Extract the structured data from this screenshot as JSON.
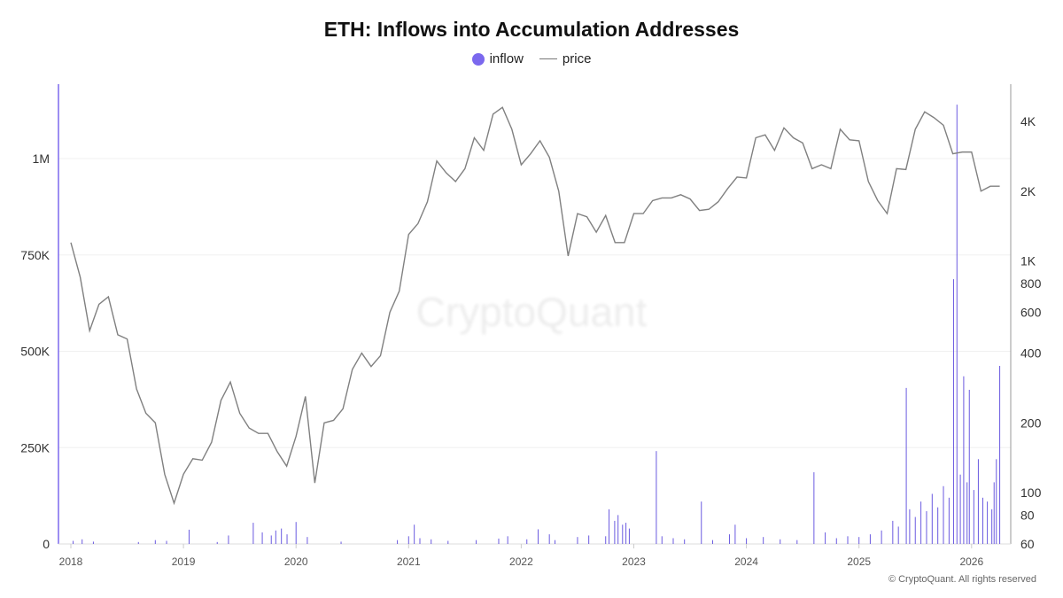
{
  "chart_data": {
    "type": "bar+line",
    "title": "ETH: Inflows into Accumulation Addresses",
    "legend": [
      {
        "name": "inflow",
        "color": "#7b68ee",
        "marker": "dot"
      },
      {
        "name": "price",
        "color": "#808080",
        "marker": "line"
      }
    ],
    "legend_placement": "top-center",
    "x_ticks": [
      "2018",
      "2019",
      "2020",
      "2021",
      "2022",
      "2023",
      "2024",
      "2025",
      "2026"
    ],
    "xlim": [
      2017.95,
      2026.3
    ],
    "y_left": {
      "ticks": [
        0,
        250000,
        500000,
        750000,
        1000000
      ],
      "tick_labels": [
        "0",
        "250K",
        "500K",
        "750K",
        "1M"
      ],
      "ylim": [
        0,
        1200000
      ],
      "scale": "linear"
    },
    "y_right": {
      "ticks": [
        60,
        80,
        100,
        200,
        400,
        600,
        800,
        1000,
        2000,
        4000
      ],
      "tick_labels": [
        "60",
        "80",
        "100",
        "200",
        "400",
        "600",
        "800",
        "1K",
        "2K",
        "4K"
      ],
      "ylim": [
        60,
        5200
      ],
      "scale": "log"
    },
    "grid": true,
    "series": [
      {
        "name": "inflow",
        "type": "bar",
        "axis": "left",
        "color": "#6a5ae0",
        "points": [
          [
            2018.02,
            8000
          ],
          [
            2018.1,
            12000
          ],
          [
            2018.2,
            6000
          ],
          [
            2018.6,
            5000
          ],
          [
            2018.75,
            10000
          ],
          [
            2018.85,
            8000
          ],
          [
            2019.05,
            37000
          ],
          [
            2019.3,
            5000
          ],
          [
            2019.4,
            22000
          ],
          [
            2019.62,
            55000
          ],
          [
            2019.7,
            30000
          ],
          [
            2019.78,
            22000
          ],
          [
            2019.82,
            35000
          ],
          [
            2019.87,
            40000
          ],
          [
            2019.92,
            25000
          ],
          [
            2020.0,
            57000
          ],
          [
            2020.1,
            18000
          ],
          [
            2020.4,
            6000
          ],
          [
            2020.9,
            10000
          ],
          [
            2021.0,
            20000
          ],
          [
            2021.05,
            50000
          ],
          [
            2021.1,
            15000
          ],
          [
            2021.2,
            12000
          ],
          [
            2021.35,
            8000
          ],
          [
            2021.6,
            10000
          ],
          [
            2021.8,
            14000
          ],
          [
            2021.88,
            20000
          ],
          [
            2022.05,
            12000
          ],
          [
            2022.15,
            38000
          ],
          [
            2022.25,
            25000
          ],
          [
            2022.3,
            10000
          ],
          [
            2022.5,
            18000
          ],
          [
            2022.6,
            22000
          ],
          [
            2022.75,
            20000
          ],
          [
            2022.78,
            90000
          ],
          [
            2022.83,
            60000
          ],
          [
            2022.86,
            75000
          ],
          [
            2022.9,
            50000
          ],
          [
            2022.93,
            55000
          ],
          [
            2022.96,
            40000
          ],
          [
            2023.2,
            241000
          ],
          [
            2023.25,
            20000
          ],
          [
            2023.35,
            15000
          ],
          [
            2023.45,
            12000
          ],
          [
            2023.6,
            110000
          ],
          [
            2023.7,
            10000
          ],
          [
            2023.85,
            25000
          ],
          [
            2023.9,
            50000
          ],
          [
            2024.0,
            15000
          ],
          [
            2024.15,
            18000
          ],
          [
            2024.3,
            12000
          ],
          [
            2024.45,
            10000
          ],
          [
            2024.6,
            186000
          ],
          [
            2024.7,
            30000
          ],
          [
            2024.8,
            15000
          ],
          [
            2024.9,
            20000
          ],
          [
            2025.0,
            18000
          ],
          [
            2025.1,
            25000
          ],
          [
            2025.2,
            35000
          ],
          [
            2025.3,
            60000
          ],
          [
            2025.35,
            45000
          ],
          [
            2025.42,
            405000
          ],
          [
            2025.45,
            90000
          ],
          [
            2025.5,
            70000
          ],
          [
            2025.55,
            110000
          ],
          [
            2025.6,
            85000
          ],
          [
            2025.65,
            130000
          ],
          [
            2025.7,
            95000
          ],
          [
            2025.75,
            150000
          ],
          [
            2025.8,
            120000
          ],
          [
            2025.84,
            687000
          ],
          [
            2025.87,
            1140000
          ],
          [
            2025.9,
            180000
          ],
          [
            2025.93,
            435000
          ],
          [
            2025.96,
            160000
          ],
          [
            2025.98,
            400000
          ],
          [
            2026.02,
            140000
          ],
          [
            2026.06,
            220000
          ],
          [
            2026.1,
            120000
          ],
          [
            2026.14,
            110000
          ],
          [
            2026.18,
            90000
          ],
          [
            2026.2,
            160000
          ],
          [
            2026.22,
            220000
          ],
          [
            2026.25,
            462000
          ]
        ]
      },
      {
        "name": "price",
        "type": "line",
        "axis": "right",
        "color": "#808080",
        "x_start": 2018.0,
        "x_step_months": 1,
        "values": [
          1200,
          850,
          500,
          650,
          700,
          480,
          460,
          280,
          220,
          200,
          120,
          90,
          120,
          140,
          138,
          165,
          250,
          300,
          220,
          190,
          180,
          180,
          150,
          130,
          175,
          260,
          110,
          200,
          205,
          230,
          340,
          400,
          350,
          390,
          600,
          740,
          1300,
          1450,
          1800,
          2700,
          2400,
          2200,
          2500,
          3400,
          3000,
          4300,
          4600,
          3700,
          2600,
          2900,
          3300,
          2800,
          2000,
          1050,
          1600,
          1550,
          1330,
          1570,
          1200,
          1200,
          1600,
          1600,
          1820,
          1870,
          1870,
          1930,
          1850,
          1650,
          1670,
          1800,
          2050,
          2300,
          2280,
          3400,
          3500,
          3000,
          3750,
          3400,
          3230,
          2500,
          2600,
          2500,
          3700,
          3330,
          3300,
          2200,
          1820,
          1600,
          2500,
          2480,
          3700,
          4400,
          4150,
          3850,
          2900,
          2950,
          2950,
          2000,
          2100,
          2100
        ]
      }
    ]
  },
  "watermark": "CryptoQuant",
  "footer": "© CryptoQuant. All rights reserved"
}
